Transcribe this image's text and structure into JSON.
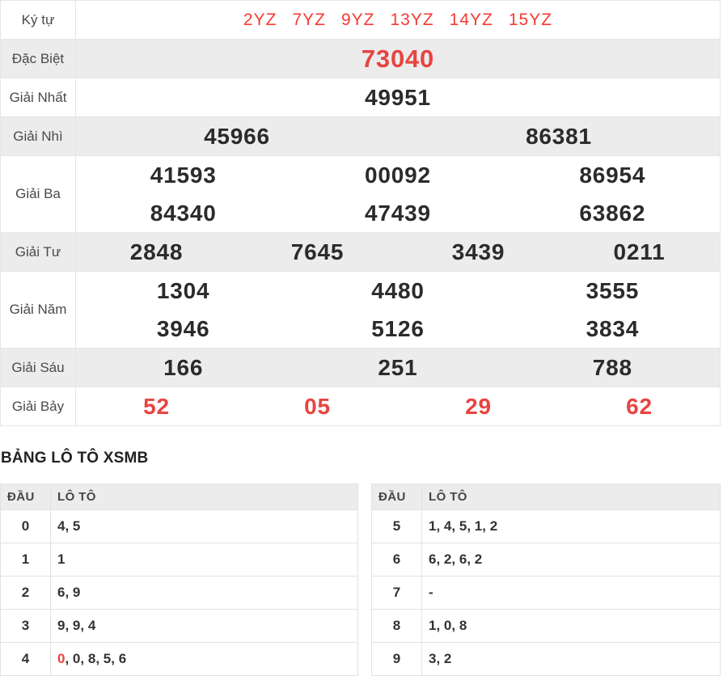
{
  "colors": {
    "red_bold": "#e84440",
    "red_symbol": "#f43b33",
    "shade_bg": "#ececec",
    "number_text": "#2b2b2b"
  },
  "separator": ", ",
  "prize_table": {
    "rows": [
      {
        "label": "Ký tự",
        "kind": "symbols",
        "cols": 6,
        "shade": false,
        "values": [
          "2YZ",
          "7YZ",
          "9YZ",
          "13YZ",
          "14YZ",
          "15YZ"
        ]
      },
      {
        "label": "Đặc Biệt",
        "kind": "special",
        "cols": 1,
        "shade": true,
        "values": [
          "73040"
        ]
      },
      {
        "label": "Giải Nhất",
        "kind": "normal",
        "cols": 1,
        "shade": false,
        "values": [
          "49951"
        ]
      },
      {
        "label": "Giải Nhì",
        "kind": "normal",
        "cols": 2,
        "shade": true,
        "values": [
          "45966",
          "86381"
        ]
      },
      {
        "label": "Giải Ba",
        "kind": "normal",
        "cols": 3,
        "shade": false,
        "values": [
          "41593",
          "00092",
          "86954",
          "84340",
          "47439",
          "63862"
        ]
      },
      {
        "label": "Giải Tư",
        "kind": "normal",
        "cols": 4,
        "shade": true,
        "values": [
          "2848",
          "7645",
          "3439",
          "0211"
        ]
      },
      {
        "label": "Giải Năm",
        "kind": "normal",
        "cols": 3,
        "shade": false,
        "values": [
          "1304",
          "4480",
          "3555",
          "3946",
          "5126",
          "3834"
        ]
      },
      {
        "label": "Giải Sáu",
        "kind": "normal",
        "cols": 3,
        "shade": true,
        "values": [
          "166",
          "251",
          "788"
        ]
      },
      {
        "label": "Giải Bảy",
        "kind": "red",
        "cols": 4,
        "shade": false,
        "values": [
          "52",
          "05",
          "29",
          "62"
        ]
      }
    ]
  },
  "loto": {
    "title": "BẢNG LÔ TÔ XSMB",
    "headers": {
      "dau": "ĐẦU",
      "loto": "LÔ TÔ"
    },
    "left_rows": [
      {
        "dau": "0",
        "values": [
          {
            "text": "4"
          },
          {
            "text": "5"
          }
        ]
      },
      {
        "dau": "1",
        "values": [
          {
            "text": "1"
          }
        ]
      },
      {
        "dau": "2",
        "values": [
          {
            "text": "6"
          },
          {
            "text": "9"
          }
        ]
      },
      {
        "dau": "3",
        "values": [
          {
            "text": "9"
          },
          {
            "text": "9"
          },
          {
            "text": "4"
          }
        ]
      },
      {
        "dau": "4",
        "values": [
          {
            "text": "0",
            "red": true
          },
          {
            "text": "0"
          },
          {
            "text": "8"
          },
          {
            "text": "5"
          },
          {
            "text": "6"
          }
        ]
      }
    ],
    "right_rows": [
      {
        "dau": "5",
        "values": [
          {
            "text": "1"
          },
          {
            "text": "4"
          },
          {
            "text": "5"
          },
          {
            "text": "1"
          },
          {
            "text": "2"
          }
        ]
      },
      {
        "dau": "6",
        "values": [
          {
            "text": "6"
          },
          {
            "text": "2"
          },
          {
            "text": "6"
          },
          {
            "text": "2"
          }
        ]
      },
      {
        "dau": "7",
        "values": [
          {
            "text": "-"
          }
        ]
      },
      {
        "dau": "8",
        "values": [
          {
            "text": "1"
          },
          {
            "text": "0"
          },
          {
            "text": "8"
          }
        ]
      },
      {
        "dau": "9",
        "values": [
          {
            "text": "3"
          },
          {
            "text": "2"
          }
        ]
      }
    ]
  }
}
